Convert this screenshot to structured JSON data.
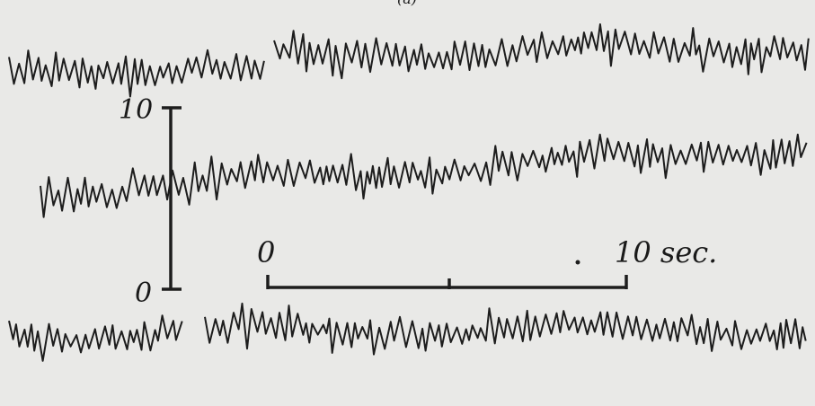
{
  "labels": {
    "panel": "(a)",
    "amplitude_top": "10",
    "amplitude_bottom": "0",
    "time_start": "0",
    "time_end": "10 sec."
  }
}
